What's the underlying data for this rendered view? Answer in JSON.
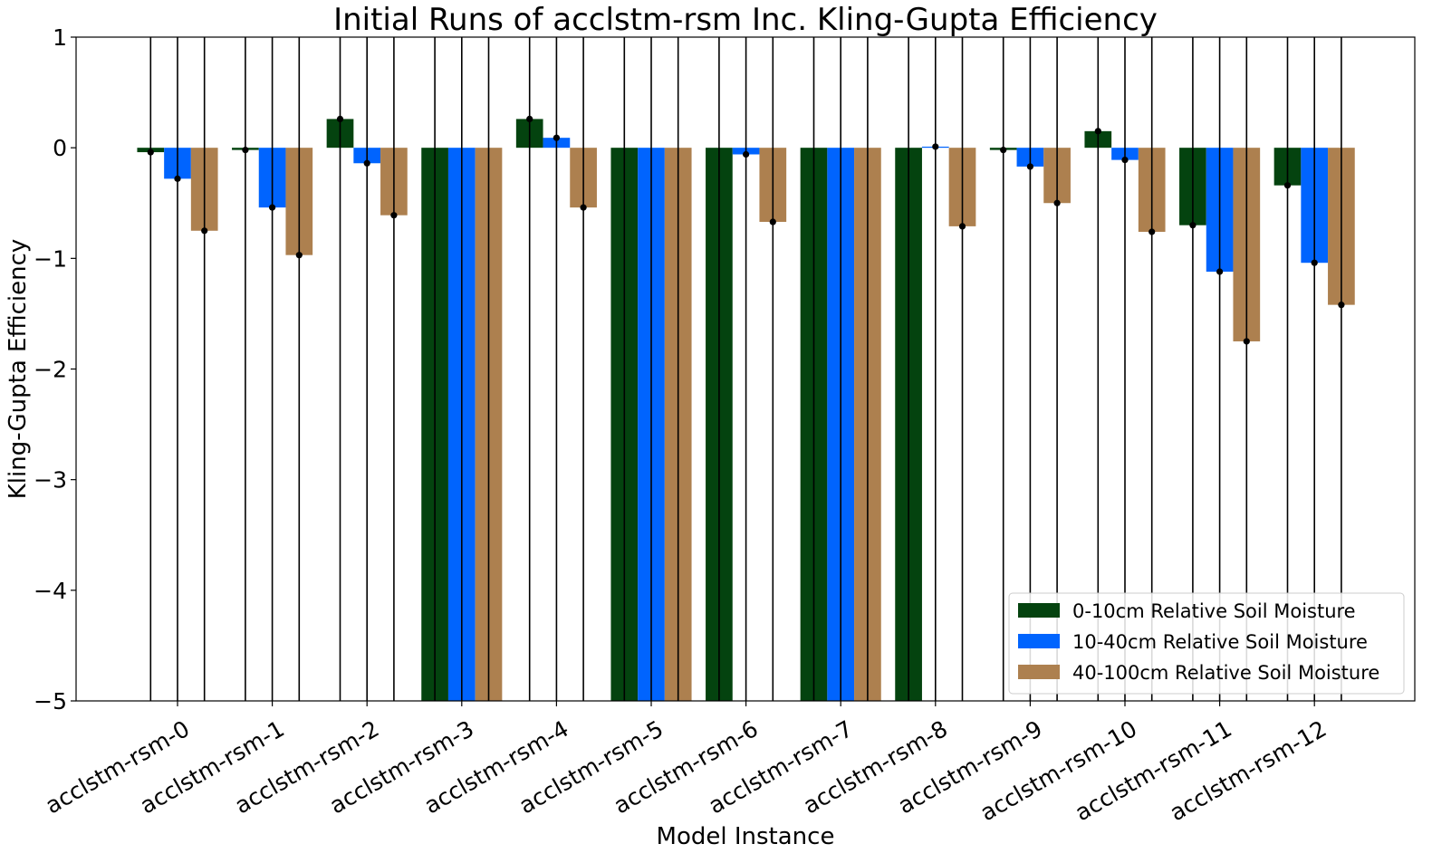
{
  "chart_data": {
    "type": "bar",
    "title": "Initial Runs of acclstm-rsm Inc. Kling-Gupta Efficiency",
    "xlabel": "Model Instance",
    "ylabel": "Kling-Gupta Efficiency",
    "ylim": [
      -5,
      1
    ],
    "yticks": [
      1,
      0,
      -1,
      -2,
      -3,
      -4,
      -5
    ],
    "ytick_labels": [
      "1",
      "0",
      "−1",
      "−2",
      "−3",
      "−4",
      "−5"
    ],
    "categories": [
      "acclstm-rsm-0",
      "acclstm-rsm-1",
      "acclstm-rsm-2",
      "acclstm-rsm-3",
      "acclstm-rsm-4",
      "acclstm-rsm-5",
      "acclstm-rsm-6",
      "acclstm-rsm-7",
      "acclstm-rsm-8",
      "acclstm-rsm-9",
      "acclstm-rsm-10",
      "acclstm-rsm-11",
      "acclstm-rsm-12"
    ],
    "series": [
      {
        "name": "0-10cm Relative Soil Moisture",
        "color": "#04430f",
        "values": [
          -0.04,
          -0.02,
          0.26,
          -5.5,
          0.26,
          -5.5,
          -5.5,
          -5.5,
          -5.5,
          -0.02,
          0.15,
          -0.7,
          -0.34
        ]
      },
      {
        "name": "10-40cm Relative Soil Moisture",
        "color": "#0064fe",
        "values": [
          -0.28,
          -0.54,
          -0.14,
          -5.5,
          0.09,
          -5.5,
          -0.06,
          -5.5,
          0.01,
          -0.17,
          -0.11,
          -1.12,
          -1.04
        ]
      },
      {
        "name": "40-100cm Relative Soil Moisture",
        "color": "#ad804f",
        "values": [
          -0.75,
          -0.97,
          -0.61,
          -5.5,
          -0.54,
          -5.5,
          -0.67,
          -5.5,
          -0.71,
          -0.5,
          -0.76,
          -1.75,
          -1.42
        ]
      }
    ],
    "error_bars": "vertical black lines spanning full axis at each bar, black dot at bar value",
    "legend_position": "lower-right",
    "grid": false
  }
}
